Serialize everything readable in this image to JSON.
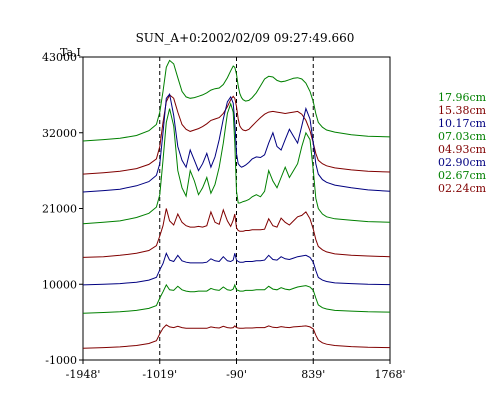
{
  "chart_data": {
    "type": "line",
    "title": "SUN_A+0:2002/02/09 09:27:49.660",
    "ylabel": "Ta,I",
    "xlabel": "",
    "xlim": [
      -1948,
      1768
    ],
    "ylim": [
      -1000,
      43000
    ],
    "x_ticks": [
      -1948,
      -1019,
      -90,
      839,
      1768
    ],
    "x_tick_labels": [
      "-1948'",
      "-1019'",
      "-90'",
      "839'",
      "1768'"
    ],
    "y_ticks": [
      -1000,
      10000,
      21000,
      32000,
      43000
    ],
    "y_tick_labels": [
      "-1000",
      "10000",
      "21000",
      "32000",
      "43000"
    ],
    "vlines": [
      -1019,
      -90,
      839
    ],
    "grid": false,
    "legend_position": "right",
    "x": [
      -1948,
      -1700,
      -1500,
      -1300,
      -1150,
      -1060,
      -1019,
      -980,
      -940,
      -900,
      -850,
      -800,
      -750,
      -700,
      -650,
      -600,
      -550,
      -500,
      -450,
      -400,
      -350,
      -300,
      -250,
      -200,
      -160,
      -130,
      -110,
      -90,
      -70,
      -50,
      -30,
      -10,
      20,
      60,
      100,
      150,
      200,
      250,
      300,
      350,
      400,
      450,
      500,
      550,
      600,
      650,
      700,
      750,
      800,
      839,
      870,
      900,
      950,
      1000,
      1100,
      1300,
      1500,
      1768
    ],
    "series": [
      {
        "name": "17.96cm",
        "color": "#008000",
        "values": [
          30800,
          31000,
          31200,
          31600,
          32300,
          33200,
          35000,
          38000,
          41500,
          42500,
          42000,
          40000,
          38000,
          37200,
          37000,
          37100,
          37300,
          37500,
          37800,
          38200,
          38400,
          38500,
          39000,
          40000,
          41000,
          41700,
          41500,
          40500,
          38800,
          37700,
          37100,
          36800,
          36600,
          36700,
          37100,
          37800,
          38800,
          39800,
          40200,
          40100,
          39600,
          39400,
          39500,
          39700,
          39900,
          40000,
          39800,
          39200,
          38000,
          36500,
          34800,
          33500,
          32800,
          32400,
          32100,
          31700,
          31500,
          31400
        ]
      },
      {
        "name": "15.38cm",
        "color": "#800000",
        "values": [
          26000,
          26200,
          26400,
          26800,
          27400,
          28200,
          30000,
          33500,
          36500,
          37500,
          37000,
          35000,
          33200,
          32500,
          32200,
          32400,
          32600,
          32900,
          33300,
          33800,
          34000,
          34200,
          34800,
          35800,
          36800,
          37300,
          37000,
          35800,
          34000,
          33000,
          32600,
          32400,
          32300,
          32500,
          33000,
          33600,
          34200,
          34700,
          35000,
          35100,
          35000,
          34900,
          34800,
          34900,
          35000,
          35100,
          34700,
          33800,
          32300,
          30500,
          29000,
          28000,
          27500,
          27200,
          26900,
          26600,
          26400,
          26300
        ]
      },
      {
        "name": "10.17cm",
        "color": "#000080",
        "values": [
          23400,
          23600,
          23800,
          24300,
          24900,
          25800,
          27500,
          32000,
          37000,
          37600,
          34500,
          30000,
          28000,
          27000,
          29500,
          28000,
          26500,
          27500,
          29000,
          27000,
          28500,
          31000,
          34000,
          36500,
          37200,
          36300,
          33500,
          29000,
          27500,
          27200,
          27000,
          27100,
          27300,
          27700,
          28200,
          28500,
          28400,
          28800,
          30500,
          32000,
          30000,
          29500,
          31000,
          32500,
          31500,
          30500,
          33000,
          35500,
          34000,
          30500,
          27500,
          26000,
          25200,
          24800,
          24400,
          24000,
          23700,
          23500
        ]
      },
      {
        "name": "07.03cm",
        "color": "#008000",
        "values": [
          18800,
          19000,
          19200,
          19700,
          20300,
          21200,
          23000,
          28000,
          33500,
          35500,
          33000,
          26500,
          24000,
          22800,
          26500,
          25000,
          23000,
          24000,
          25500,
          23200,
          24500,
          27000,
          30500,
          34800,
          36200,
          35000,
          30500,
          23500,
          21800,
          21800,
          21900,
          22000,
          22100,
          22300,
          22700,
          23000,
          22700,
          23500,
          26500,
          25000,
          24000,
          25500,
          27000,
          25500,
          26500,
          27500,
          30000,
          32000,
          31000,
          26500,
          22500,
          21000,
          20200,
          19800,
          19500,
          19300,
          19100,
          19000
        ]
      },
      {
        "name": "04.93cm",
        "color": "#800000",
        "values": [
          13900,
          14000,
          14200,
          14500,
          14900,
          15600,
          17000,
          18500,
          21000,
          19200,
          18600,
          20200,
          19000,
          18500,
          18300,
          18300,
          18400,
          18300,
          18500,
          20500,
          19000,
          18700,
          20800,
          19200,
          18400,
          19300,
          20200,
          18200,
          17800,
          17700,
          17700,
          17700,
          17800,
          17800,
          17900,
          17900,
          17900,
          18000,
          19500,
          18500,
          18300,
          19600,
          19000,
          18600,
          19200,
          19800,
          20000,
          20500,
          19500,
          18000,
          16500,
          15500,
          15000,
          14700,
          14400,
          14200,
          14100,
          14000
        ]
      },
      {
        "name": "02.90cm",
        "color": "#000080",
        "values": [
          9900,
          10000,
          10100,
          10300,
          10600,
          11000,
          12100,
          13000,
          14500,
          13500,
          13300,
          14200,
          13400,
          13200,
          13100,
          13100,
          13100,
          13100,
          13200,
          13700,
          13400,
          13300,
          14000,
          13400,
          13300,
          13500,
          14500,
          13500,
          13300,
          13200,
          13200,
          13200,
          13300,
          13300,
          13300,
          13400,
          13400,
          13500,
          14200,
          13600,
          13500,
          14000,
          13700,
          13600,
          13800,
          14000,
          14100,
          14200,
          13900,
          13200,
          12000,
          11000,
          10600,
          10400,
          10200,
          10100,
          10000,
          9950
        ]
      },
      {
        "name": "02.67cm",
        "color": "#008000",
        "values": [
          5800,
          5900,
          6000,
          6200,
          6500,
          6900,
          8000,
          8900,
          9900,
          9200,
          9100,
          9700,
          9200,
          9000,
          8900,
          8900,
          9000,
          9000,
          9000,
          9400,
          9200,
          9100,
          9600,
          9200,
          9100,
          9300,
          9900,
          9200,
          9100,
          9000,
          9000,
          9000,
          9100,
          9100,
          9100,
          9200,
          9200,
          9200,
          9700,
          9300,
          9200,
          9500,
          9300,
          9200,
          9400,
          9600,
          9700,
          9800,
          9600,
          9100,
          8000,
          7000,
          6600,
          6400,
          6200,
          6100,
          6000,
          5950
        ]
      },
      {
        "name": "02.24cm",
        "color": "#800000",
        "values": [
          700,
          800,
          900,
          1100,
          1400,
          1800,
          2800,
          3600,
          4100,
          3800,
          3700,
          3900,
          3700,
          3600,
          3600,
          3600,
          3600,
          3600,
          3600,
          3800,
          3700,
          3650,
          3900,
          3700,
          3650,
          3700,
          3950,
          3700,
          3650,
          3600,
          3600,
          3600,
          3650,
          3650,
          3650,
          3700,
          3700,
          3700,
          3950,
          3750,
          3700,
          3850,
          3750,
          3700,
          3800,
          3850,
          3900,
          3950,
          3800,
          3500,
          2600,
          1900,
          1500,
          1300,
          1100,
          950,
          850,
          800
        ]
      }
    ]
  }
}
